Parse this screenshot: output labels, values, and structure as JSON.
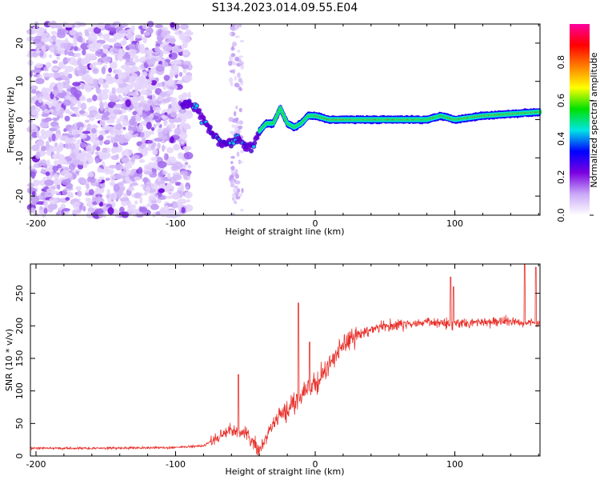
{
  "figure_title": "S134.2023.014.09.55.E04",
  "chart_data": [
    {
      "type": "heatmap",
      "title": "",
      "xlabel": "Height of straight line (km)",
      "ylabel": "Frequency (Hz)",
      "xlim": [
        -204,
        161
      ],
      "ylim": [
        -25,
        25
      ],
      "xticks": [
        -200,
        -100,
        0,
        100
      ],
      "yticks": [
        -20,
        -10,
        0,
        10,
        20
      ],
      "colorbar": {
        "label": "Normalized spectral amplitude",
        "range": [
          0,
          1
        ],
        "ticks": [
          "0.0",
          "0.2",
          "0.4",
          "0.6",
          "0.8"
        ],
        "tick_values": [
          0,
          0.2,
          0.4,
          0.6,
          0.8
        ],
        "colors": [
          "#ffffff",
          "#c9a8f7",
          "#7a00e0",
          "#0000ff",
          "#00e5e5",
          "#00e000",
          "#ffff00",
          "#ff8000",
          "#ff0000",
          "#ff00a0"
        ]
      },
      "noise_region": {
        "x_from": -204,
        "x_to": -90,
        "freq_from": -25,
        "freq_to": 25
      },
      "noise_stripe": {
        "x_from": -61,
        "x_to": -52
      },
      "carrier_trace": {
        "x": [
          -90,
          -85,
          -80,
          -75,
          -70,
          -65,
          -60,
          -55,
          -50,
          -45,
          -40,
          -35,
          -30,
          -25,
          -20,
          -15,
          -10,
          -5,
          0,
          10,
          20,
          40,
          60,
          80,
          90,
          100,
          120,
          140,
          161
        ],
        "freq": [
          4,
          3,
          0,
          -3,
          -5,
          -7,
          -6,
          -5,
          -7,
          -7,
          -3,
          -1,
          -1,
          3,
          -1,
          -2,
          -1,
          1,
          1,
          0,
          0,
          0,
          0,
          0,
          1,
          0,
          1,
          1.5,
          2
        ]
      }
    },
    {
      "type": "line",
      "title": "",
      "xlabel": "Height of straight line (km)",
      "ylabel": "SNR (10 * v/v)",
      "xlim": [
        -204,
        161
      ],
      "ylim": [
        0,
        295
      ],
      "xticks": [
        -200,
        -100,
        0,
        100
      ],
      "yticks": [
        0,
        50,
        100,
        150,
        200,
        250
      ],
      "line_color": "#e8302a",
      "trend": {
        "x": [
          -204,
          -150,
          -100,
          -80,
          -70,
          -60,
          -50,
          -40,
          -30,
          -20,
          -10,
          0,
          10,
          20,
          30,
          40,
          60,
          80,
          100,
          120,
          140,
          161
        ],
        "y": [
          12,
          12,
          13,
          16,
          28,
          40,
          35,
          8,
          50,
          70,
          95,
          110,
          140,
          170,
          185,
          195,
          202,
          205,
          205,
          205,
          207,
          205
        ]
      },
      "spikes": [
        {
          "x": -55,
          "y": 125
        },
        {
          "x": -12,
          "y": 235
        },
        {
          "x": -4,
          "y": 175
        },
        {
          "x": 97,
          "y": 275
        },
        {
          "x": 99,
          "y": 260
        },
        {
          "x": 150,
          "y": 295
        },
        {
          "x": 158,
          "y": 290
        }
      ]
    }
  ]
}
